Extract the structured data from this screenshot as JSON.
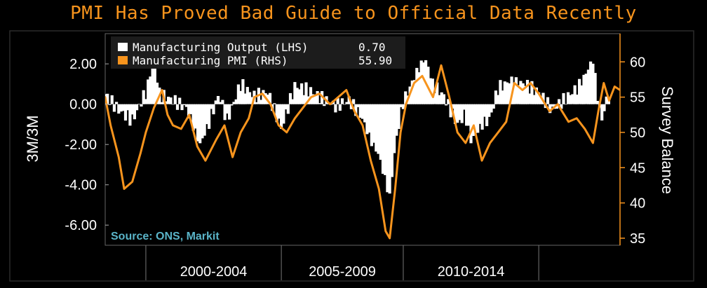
{
  "title": "PMI Has Proved Bad Guide to Official Data Recently",
  "legend": {
    "items": [
      {
        "label": "Manufacturing Output (LHS)",
        "value": "0.70",
        "color": "#ffffff"
      },
      {
        "label": "Manufacturing PMI (RHS)",
        "value": "55.90",
        "color": "#f7941d"
      }
    ]
  },
  "source": "Source: ONS, Markit",
  "chart_data": {
    "type": "bar",
    "left_axis": {
      "label": "3M/3M",
      "ticks": [
        "2.00",
        "0.00",
        "-2.00",
        "-4.00",
        "-6.00"
      ],
      "tick_values": [
        2,
        0,
        -2,
        -4,
        -6
      ],
      "range": [
        -7,
        3.5
      ]
    },
    "right_axis": {
      "label": "Survey Balance",
      "ticks": [
        "60",
        "55",
        "50",
        "45",
        "40",
        "35"
      ],
      "tick_values": [
        60,
        55,
        50,
        45,
        40,
        35
      ],
      "range": [
        34,
        64
      ]
    },
    "x_periods": [
      "2000-2004",
      "2005-2009",
      "2010-2014"
    ],
    "x_range": [
      1998.5,
      2017.5
    ],
    "period_bounds": [
      2000,
      2005,
      2009.5,
      2014.5
    ],
    "output_series": {
      "name": "Manufacturing Output (LHS)",
      "color": "#ffffff",
      "points": [
        [
          1998.5,
          0.5
        ],
        [
          1999.0,
          -0.3
        ],
        [
          1999.5,
          -0.8
        ],
        [
          2000.0,
          0.6
        ],
        [
          2000.3,
          2.2
        ],
        [
          2000.5,
          0.5
        ],
        [
          2001.0,
          0.2
        ],
        [
          2001.5,
          -0.2
        ],
        [
          2002.0,
          -2.0
        ],
        [
          2002.3,
          -1.0
        ],
        [
          2002.7,
          0.5
        ],
        [
          2003.0,
          -0.8
        ],
        [
          2003.5,
          1.0
        ],
        [
          2004.0,
          0.4
        ],
        [
          2004.5,
          0.6
        ],
        [
          2005.0,
          -1.2
        ],
        [
          2005.5,
          0.9
        ],
        [
          2006.0,
          0.7
        ],
        [
          2006.5,
          0.3
        ],
        [
          2007.0,
          -0.1
        ],
        [
          2007.5,
          0.2
        ],
        [
          2008.0,
          -0.7
        ],
        [
          2008.3,
          -1.8
        ],
        [
          2008.6,
          -2.5
        ],
        [
          2009.0,
          -4.6
        ],
        [
          2009.2,
          -2.0
        ],
        [
          2009.5,
          0.1
        ],
        [
          2010.0,
          1.6
        ],
        [
          2010.3,
          2.3
        ],
        [
          2010.6,
          1.0
        ],
        [
          2011.0,
          0.4
        ],
        [
          2011.5,
          -1.0
        ],
        [
          2011.8,
          -0.5
        ],
        [
          2012.0,
          -1.8
        ],
        [
          2012.3,
          -1.2
        ],
        [
          2012.7,
          -0.7
        ],
        [
          2013.0,
          0.8
        ],
        [
          2013.5,
          1.2
        ],
        [
          2014.0,
          1.0
        ],
        [
          2014.5,
          0.6
        ],
        [
          2015.0,
          -0.3
        ],
        [
          2015.5,
          0.3
        ],
        [
          2016.0,
          0.9
        ],
        [
          2016.5,
          2.2
        ],
        [
          2016.8,
          -0.9
        ],
        [
          2017.1,
          0.7
        ]
      ]
    },
    "pmi_series": {
      "name": "Manufacturing PMI (RHS)",
      "color": "#f7941d",
      "points": [
        [
          1998.5,
          55
        ],
        [
          1998.7,
          51
        ],
        [
          1999.0,
          46.5
        ],
        [
          1999.2,
          42
        ],
        [
          1999.5,
          43
        ],
        [
          1999.8,
          47
        ],
        [
          2000.0,
          50
        ],
        [
          2000.3,
          53.5
        ],
        [
          2000.6,
          56
        ],
        [
          2000.8,
          52.5
        ],
        [
          2001.0,
          51
        ],
        [
          2001.3,
          50.5
        ],
        [
          2001.6,
          52.5
        ],
        [
          2001.9,
          48
        ],
        [
          2002.2,
          46
        ],
        [
          2002.6,
          49
        ],
        [
          2002.9,
          51
        ],
        [
          2003.2,
          46.5
        ],
        [
          2003.5,
          50
        ],
        [
          2003.8,
          52
        ],
        [
          2004.0,
          55
        ],
        [
          2004.3,
          55.5
        ],
        [
          2004.6,
          54
        ],
        [
          2004.9,
          51
        ],
        [
          2005.2,
          50
        ],
        [
          2005.5,
          52
        ],
        [
          2005.8,
          53.5
        ],
        [
          2006.1,
          55
        ],
        [
          2006.4,
          55.5
        ],
        [
          2006.8,
          54
        ],
        [
          2007.1,
          55
        ],
        [
          2007.4,
          56
        ],
        [
          2007.7,
          53
        ],
        [
          2008.0,
          51
        ],
        [
          2008.3,
          46
        ],
        [
          2008.6,
          42
        ],
        [
          2008.85,
          36
        ],
        [
          2009.0,
          35
        ],
        [
          2009.2,
          42
        ],
        [
          2009.4,
          50
        ],
        [
          2009.6,
          54
        ],
        [
          2009.9,
          57
        ],
        [
          2010.2,
          58
        ],
        [
          2010.6,
          55
        ],
        [
          2010.9,
          59.5
        ],
        [
          2011.2,
          55
        ],
        [
          2011.5,
          50
        ],
        [
          2011.8,
          48.5
        ],
        [
          2012.1,
          51
        ],
        [
          2012.4,
          46
        ],
        [
          2012.7,
          48.5
        ],
        [
          2013.0,
          50
        ],
        [
          2013.3,
          51.5
        ],
        [
          2013.6,
          57
        ],
        [
          2013.9,
          56
        ],
        [
          2014.2,
          57
        ],
        [
          2014.5,
          55.5
        ],
        [
          2014.9,
          53
        ],
        [
          2015.2,
          54
        ],
        [
          2015.6,
          51.5
        ],
        [
          2015.9,
          52
        ],
        [
          2016.2,
          50.5
        ],
        [
          2016.5,
          48.5
        ],
        [
          2016.7,
          53
        ],
        [
          2016.9,
          57
        ],
        [
          2017.1,
          54.5
        ],
        [
          2017.3,
          56.5
        ],
        [
          2017.5,
          56
        ]
      ]
    },
    "grid": false,
    "legend_position": "top-left"
  }
}
